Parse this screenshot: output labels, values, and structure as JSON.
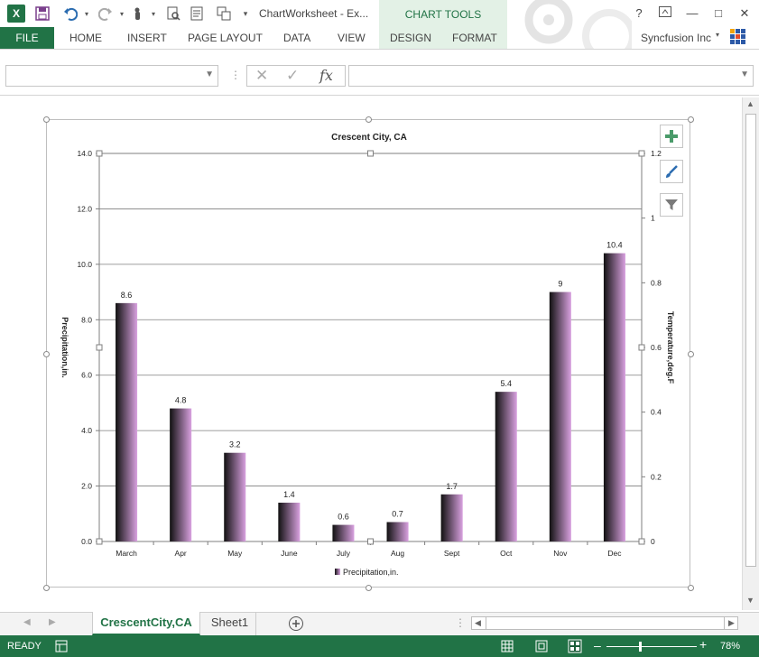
{
  "titlebar": {
    "doc_title": "ChartWorksheet - Ex...",
    "chart_tools": "CHART TOOLS",
    "help": "?",
    "minimize": "—",
    "restore": "□",
    "close": "✕"
  },
  "ribbon": {
    "file": "FILE",
    "tabs": [
      "HOME",
      "INSERT",
      "PAGE LAYOUT",
      "DATA",
      "VIEW",
      "DESIGN",
      "FORMAT"
    ],
    "user": "Syncfusion Inc"
  },
  "formula_bar": {
    "namebox_value": "",
    "formula_value": "",
    "fx": "fx"
  },
  "chart_data": {
    "type": "bar",
    "title": "Crescent City, CA",
    "categories": [
      "March",
      "Apr",
      "May",
      "June",
      "July",
      "Aug",
      "Sept",
      "Oct",
      "Nov",
      "Dec"
    ],
    "series": [
      {
        "name": "Precipitation,in.",
        "values": [
          8.6,
          4.8,
          3.2,
          1.4,
          0.6,
          0.7,
          1.7,
          5.4,
          9,
          10.4
        ]
      }
    ],
    "data_labels": [
      "8.6",
      "4.8",
      "3.2",
      "1.4",
      "0.6",
      "0.7",
      "1.7",
      "5.4",
      "9",
      "10.4"
    ],
    "ylabel": "Precipitation,in.",
    "y2label": "Temperature,deg.F",
    "ylim": [
      0,
      14
    ],
    "yticks": [
      "0.0",
      "2.0",
      "4.0",
      "6.0",
      "8.0",
      "10.0",
      "12.0",
      "14.0"
    ],
    "y2lim": [
      0,
      1.2
    ],
    "y2ticks": [
      "0",
      "0.2",
      "0.4",
      "0.6",
      "0.8",
      "1",
      "1.2"
    ],
    "grid": true,
    "legend_position": "bottom",
    "bar_colors": [
      "#111111",
      "#d9a1e0"
    ]
  },
  "sheet_tabs": {
    "active": "CrescentCity,CA",
    "other": "Sheet1"
  },
  "status": {
    "ready": "READY",
    "zoom": "78%"
  }
}
